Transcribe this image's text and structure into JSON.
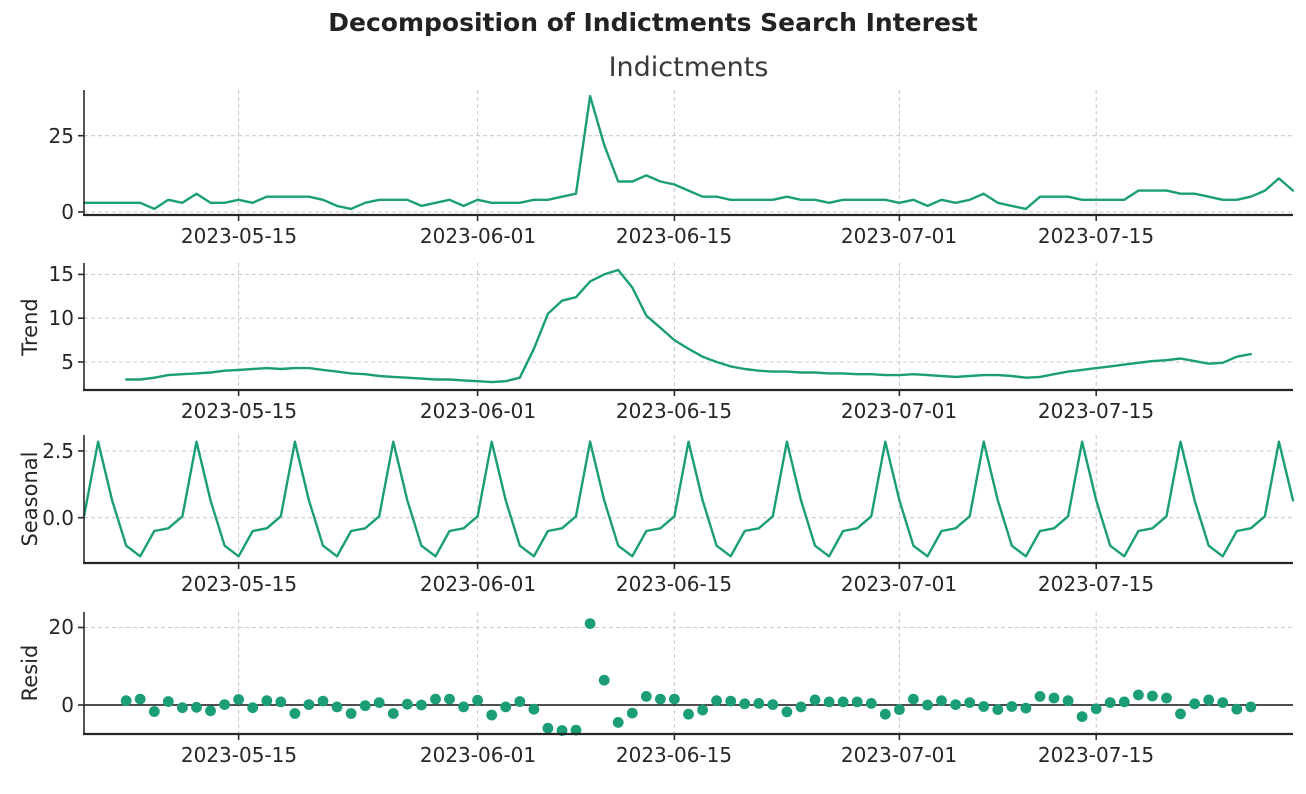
{
  "title": "Decomposition of Indictments Search Interest",
  "accent_color": "#1b9e77",
  "chart_data": {
    "type": "line",
    "title": "Decomposition of Indictments Search Interest",
    "grid": true,
    "legend": "none",
    "line_color": "#1b9e77",
    "dates": [
      "2023-05-04",
      "2023-05-05",
      "2023-05-06",
      "2023-05-07",
      "2023-05-08",
      "2023-05-09",
      "2023-05-10",
      "2023-05-11",
      "2023-05-12",
      "2023-05-13",
      "2023-05-14",
      "2023-05-15",
      "2023-05-16",
      "2023-05-17",
      "2023-05-18",
      "2023-05-19",
      "2023-05-20",
      "2023-05-21",
      "2023-05-22",
      "2023-05-23",
      "2023-05-24",
      "2023-05-25",
      "2023-05-26",
      "2023-05-27",
      "2023-05-28",
      "2023-05-29",
      "2023-05-30",
      "2023-05-31",
      "2023-06-01",
      "2023-06-02",
      "2023-06-03",
      "2023-06-04",
      "2023-06-05",
      "2023-06-06",
      "2023-06-07",
      "2023-06-08",
      "2023-06-09",
      "2023-06-10",
      "2023-06-11",
      "2023-06-12",
      "2023-06-13",
      "2023-06-14",
      "2023-06-15",
      "2023-06-16",
      "2023-06-17",
      "2023-06-18",
      "2023-06-19",
      "2023-06-20",
      "2023-06-21",
      "2023-06-22",
      "2023-06-23",
      "2023-06-24",
      "2023-06-25",
      "2023-06-26",
      "2023-06-27",
      "2023-06-28",
      "2023-06-29",
      "2023-06-30",
      "2023-07-01",
      "2023-07-02",
      "2023-07-03",
      "2023-07-04",
      "2023-07-05",
      "2023-07-06",
      "2023-07-07",
      "2023-07-08",
      "2023-07-09",
      "2023-07-10",
      "2023-07-11",
      "2023-07-12",
      "2023-07-13",
      "2023-07-14",
      "2023-07-15",
      "2023-07-16",
      "2023-07-17",
      "2023-07-18",
      "2023-07-19",
      "2023-07-20",
      "2023-07-21",
      "2023-07-22",
      "2023-07-23",
      "2023-07-24",
      "2023-07-25",
      "2023-07-26",
      "2023-07-27",
      "2023-07-28",
      "2023-07-29"
    ],
    "x_tick_labels": [
      "2023-05-15",
      "2023-06-01",
      "2023-06-15",
      "2023-07-01",
      "2023-07-15"
    ],
    "x_tick_indices": [
      11,
      28,
      42,
      58,
      72
    ],
    "panels": [
      {
        "name": "observed",
        "title": "Indictments",
        "plot": "line",
        "start_index": 0,
        "ylim": [
          -1,
          40
        ],
        "y_ticks": [
          0,
          25
        ],
        "y_tick_labels": [
          "0",
          "25"
        ],
        "values": [
          3,
          3,
          3,
          3,
          3,
          1,
          4,
          3,
          6,
          3,
          3,
          4,
          3,
          5,
          5,
          5,
          5,
          4,
          2,
          1,
          3,
          4,
          4,
          4,
          2,
          3,
          4,
          2,
          4,
          3,
          3,
          3,
          4,
          4,
          5,
          6,
          38,
          22,
          10,
          10,
          12,
          10,
          9,
          7,
          5,
          5,
          4,
          4,
          4,
          4,
          5,
          4,
          4,
          3,
          4,
          4,
          4,
          4,
          3,
          4,
          2,
          4,
          3,
          4,
          6,
          3,
          2,
          1,
          5,
          5,
          5,
          4,
          4,
          4,
          4,
          7,
          7,
          7,
          6,
          6,
          5,
          4,
          4,
          5,
          7,
          11,
          7
        ]
      },
      {
        "name": "trend",
        "ylabel": "Trend",
        "plot": "line",
        "start_index": 3,
        "ylim": [
          1.8,
          16.3
        ],
        "y_ticks": [
          5,
          10,
          15
        ],
        "y_tick_labels": [
          "5",
          "10",
          "15"
        ],
        "values": [
          3.0,
          3.0,
          3.2,
          3.5,
          3.6,
          3.7,
          3.8,
          4.0,
          4.1,
          4.2,
          4.3,
          4.2,
          4.3,
          4.3,
          4.1,
          3.9,
          3.7,
          3.6,
          3.4,
          3.3,
          3.2,
          3.1,
          3.0,
          3.0,
          2.9,
          2.8,
          2.7,
          2.8,
          3.2,
          6.5,
          10.5,
          12.0,
          12.4,
          14.2,
          15.0,
          15.5,
          13.5,
          10.3,
          8.9,
          7.5,
          6.5,
          5.6,
          5.0,
          4.5,
          4.2,
          4.0,
          3.9,
          3.9,
          3.8,
          3.8,
          3.7,
          3.7,
          3.6,
          3.6,
          3.5,
          3.5,
          3.6,
          3.5,
          3.4,
          3.3,
          3.4,
          3.5,
          3.5,
          3.4,
          3.2,
          3.3,
          3.6,
          3.9,
          4.1,
          4.3,
          4.5,
          4.7,
          4.9,
          5.1,
          5.2,
          5.4,
          5.1,
          4.8,
          4.9,
          5.6,
          5.9
        ]
      },
      {
        "name": "seasonal",
        "ylabel": "Seasonal",
        "plot": "line",
        "start_index": 0,
        "ylim": [
          -1.7,
          3.1
        ],
        "y_ticks": [
          0,
          2.5
        ],
        "y_tick_labels": [
          "0.0",
          "2.5"
        ],
        "weekly_pattern_thu_to_wed": [
          0.05,
          2.85,
          0.65,
          -1.05,
          -1.45,
          -0.5,
          -0.4
        ],
        "values": [
          0.05,
          2.85,
          0.65,
          -1.05,
          -1.45,
          -0.5,
          -0.4,
          0.05,
          2.85,
          0.65,
          -1.05,
          -1.45,
          -0.5,
          -0.4,
          0.05,
          2.85,
          0.65,
          -1.05,
          -1.45,
          -0.5,
          -0.4,
          0.05,
          2.85,
          0.65,
          -1.05,
          -1.45,
          -0.5,
          -0.4,
          0.05,
          2.85,
          0.65,
          -1.05,
          -1.45,
          -0.5,
          -0.4,
          0.05,
          2.85,
          0.65,
          -1.05,
          -1.45,
          -0.5,
          -0.4,
          0.05,
          2.85,
          0.65,
          -1.05,
          -1.45,
          -0.5,
          -0.4,
          0.05,
          2.85,
          0.65,
          -1.05,
          -1.45,
          -0.5,
          -0.4,
          0.05,
          2.85,
          0.65,
          -1.05,
          -1.45,
          -0.5,
          -0.4,
          0.05,
          2.85,
          0.65,
          -1.05,
          -1.45,
          -0.5,
          -0.4,
          0.05,
          2.85,
          0.65,
          -1.05,
          -1.45,
          -0.5,
          -0.4,
          0.05,
          2.85,
          0.65,
          -1.05,
          -1.45,
          -0.5,
          -0.4,
          0.05,
          2.85,
          0.65
        ]
      },
      {
        "name": "resid",
        "ylabel": "Resid",
        "plot": "scatter",
        "start_index": 3,
        "ylim": [
          -7.5,
          24
        ],
        "y_ticks": [
          0,
          20
        ],
        "y_tick_labels": [
          "0",
          "20"
        ],
        "zero_line": true,
        "values": [
          1.1,
          1.5,
          -1.7,
          0.9,
          -0.7,
          -0.6,
          -1.5,
          0.1,
          1.4,
          -0.7,
          1.1,
          0.8,
          -2.2,
          0.1,
          1.0,
          -0.5,
          -2.2,
          -0.2,
          0.6,
          -2.2,
          0.2,
          0.0,
          1.5,
          1.5,
          -0.5,
          1.2,
          -2.6,
          -0.5,
          0.9,
          -1.1,
          -6.0,
          -6.6,
          -6.5,
          21.0,
          6.4,
          -4.5,
          -2.1,
          2.2,
          1.5,
          1.5,
          -2.4,
          -1.3,
          1.1,
          1.0,
          0.3,
          0.4,
          0.1,
          -1.8,
          -0.5,
          1.3,
          0.8,
          0.8,
          0.8,
          0.4,
          -2.4,
          -1.2,
          1.5,
          0.0,
          1.1,
          0.1,
          0.6,
          -0.4,
          -1.2,
          -0.4,
          -0.8,
          2.2,
          1.8,
          1.1,
          -3.0,
          -1.0,
          0.6,
          0.8,
          2.6,
          2.3,
          1.8,
          -2.3,
          0.3,
          1.3,
          0.6,
          -1.1,
          -0.5
        ]
      }
    ]
  }
}
